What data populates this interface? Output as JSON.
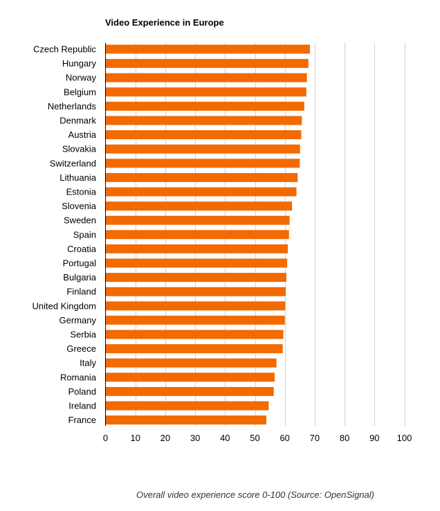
{
  "chart_data": {
    "type": "bar",
    "orientation": "horizontal",
    "title": "Video Experience in Europe",
    "xlabel": "Overall video experience score 0-100 (Source: OpenSignal)",
    "ylabel": "",
    "xlim": [
      0,
      100
    ],
    "ticks": [
      0,
      10,
      20,
      30,
      40,
      50,
      60,
      70,
      80,
      90,
      100
    ],
    "grid": true,
    "bar_color": "#F26A00",
    "categories": [
      "Czech Republic",
      "Hungary",
      "Norway",
      "Belgium",
      "Netherlands",
      "Denmark",
      "Austria",
      "Slovakia",
      "Switzerland",
      "Lithuania",
      "Estonia",
      "Slovenia",
      "Sweden",
      "Spain",
      "Croatia",
      "Portugal",
      "Bulgaria",
      "Finland",
      "United Kingdom",
      "Germany",
      "Serbia",
      "Greece",
      "Italy",
      "Romania",
      "Poland",
      "Ireland",
      "France"
    ],
    "values": [
      68.4,
      67.9,
      67.4,
      67.2,
      66.5,
      65.7,
      65.5,
      65.1,
      65.0,
      64.3,
      63.9,
      62.4,
      61.6,
      61.4,
      61.0,
      60.8,
      60.5,
      60.3,
      60.1,
      60.0,
      59.5,
      59.3,
      57.2,
      56.6,
      56.3,
      54.6,
      53.8
    ]
  }
}
